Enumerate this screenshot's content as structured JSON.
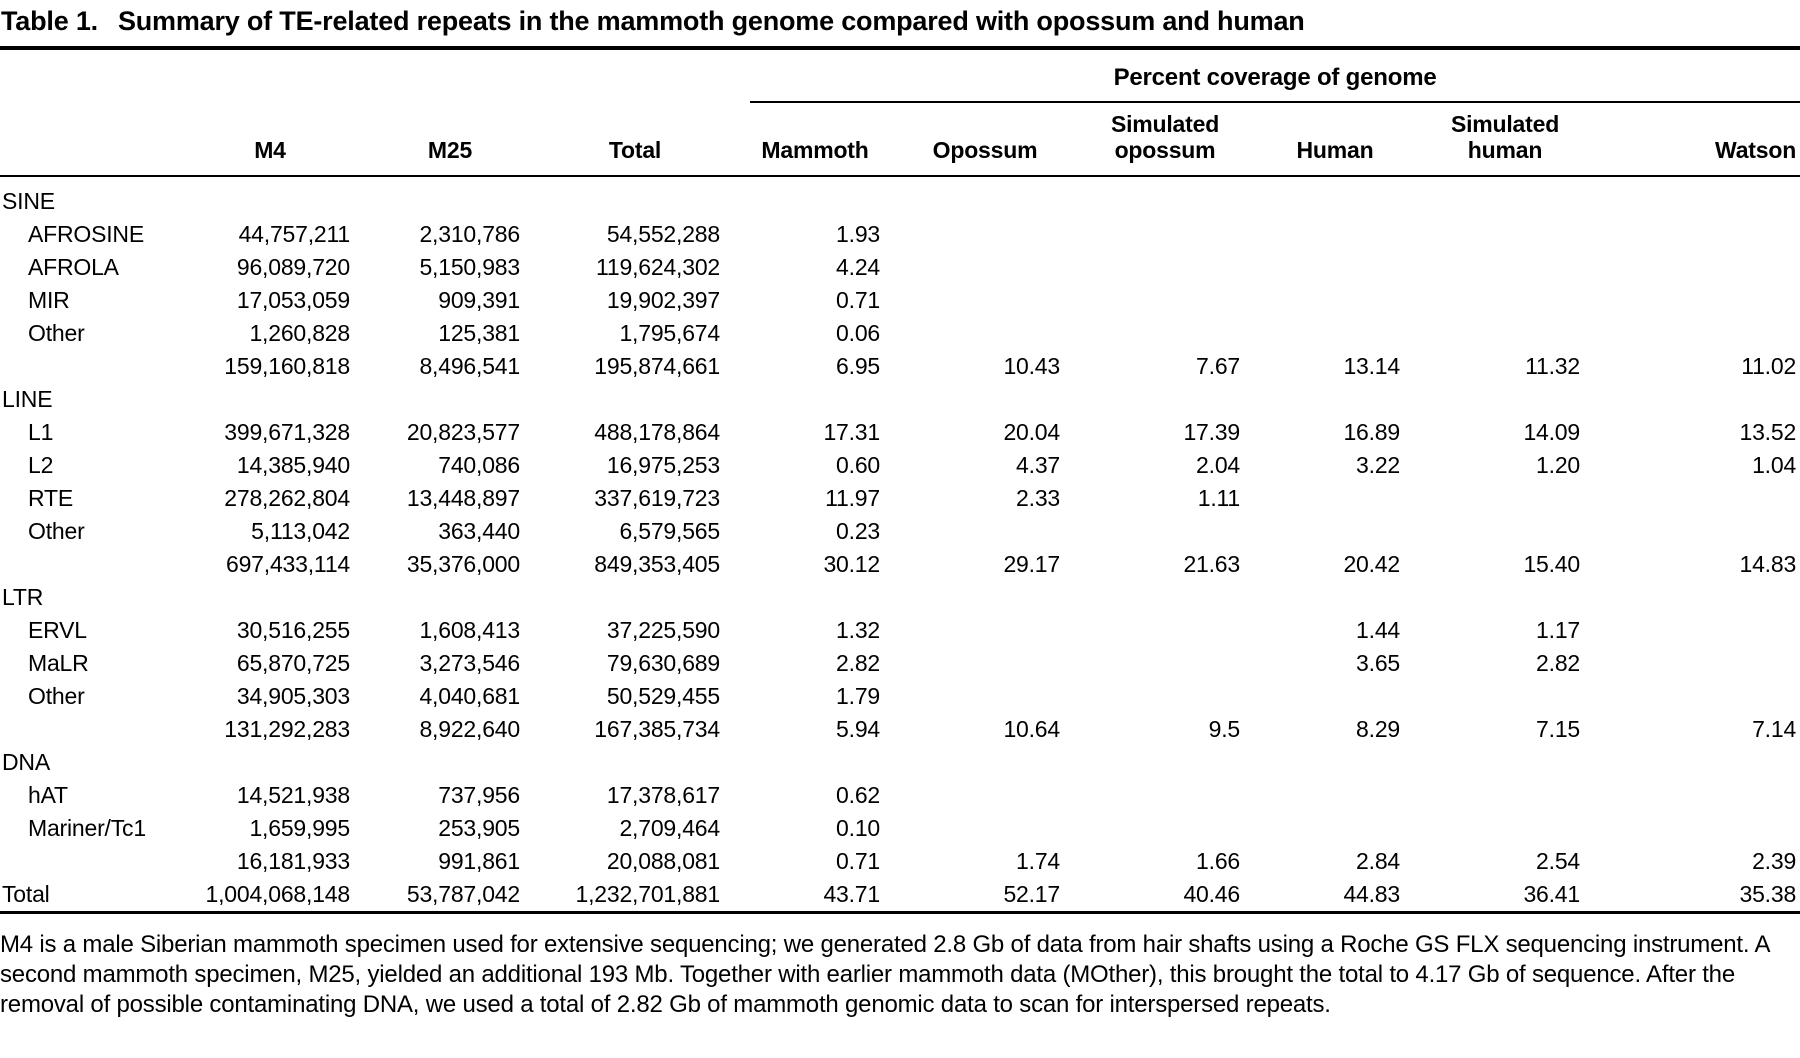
{
  "title": {
    "label": "Table 1.",
    "text": "Summary of TE-related repeats in the mammoth genome compared with opossum and human"
  },
  "table": {
    "spanner": "Percent coverage of genome",
    "columns": [
      "",
      "M4",
      "M25",
      "Total",
      "Mammoth",
      "Opossum",
      "Simulated opossum",
      "Human",
      "Simulated human",
      "Watson"
    ],
    "rows": [
      {
        "label": "SINE",
        "section": true,
        "indent": false,
        "cells": [
          "",
          "",
          "",
          "",
          "",
          "",
          "",
          "",
          ""
        ]
      },
      {
        "label": "AFROSINE",
        "section": false,
        "indent": true,
        "cells": [
          "44,757,211",
          "2,310,786",
          "54,552,288",
          "1.93",
          "",
          "",
          "",
          "",
          ""
        ]
      },
      {
        "label": "AFROLA",
        "section": false,
        "indent": true,
        "cells": [
          "96,089,720",
          "5,150,983",
          "119,624,302",
          "4.24",
          "",
          "",
          "",
          "",
          ""
        ]
      },
      {
        "label": "MIR",
        "section": false,
        "indent": true,
        "cells": [
          "17,053,059",
          "909,391",
          "19,902,397",
          "0.71",
          "",
          "",
          "",
          "",
          ""
        ]
      },
      {
        "label": "Other",
        "section": false,
        "indent": true,
        "cells": [
          "1,260,828",
          "125,381",
          "1,795,674",
          "0.06",
          "",
          "",
          "",
          "",
          ""
        ]
      },
      {
        "label": "",
        "section": false,
        "indent": false,
        "cells": [
          "159,160,818",
          "8,496,541",
          "195,874,661",
          "6.95",
          "10.43",
          "7.67",
          "13.14",
          "11.32",
          "11.02"
        ]
      },
      {
        "label": "LINE",
        "section": true,
        "indent": false,
        "cells": [
          "",
          "",
          "",
          "",
          "",
          "",
          "",
          "",
          ""
        ]
      },
      {
        "label": "L1",
        "section": false,
        "indent": true,
        "cells": [
          "399,671,328",
          "20,823,577",
          "488,178,864",
          "17.31",
          "20.04",
          "17.39",
          "16.89",
          "14.09",
          "13.52"
        ]
      },
      {
        "label": "L2",
        "section": false,
        "indent": true,
        "cells": [
          "14,385,940",
          "740,086",
          "16,975,253",
          "0.60",
          "4.37",
          "2.04",
          "3.22",
          "1.20",
          "1.04"
        ]
      },
      {
        "label": "RTE",
        "section": false,
        "indent": true,
        "cells": [
          "278,262,804",
          "13,448,897",
          "337,619,723",
          "11.97",
          "2.33",
          "1.11",
          "",
          "",
          ""
        ]
      },
      {
        "label": "Other",
        "section": false,
        "indent": true,
        "cells": [
          "5,113,042",
          "363,440",
          "6,579,565",
          "0.23",
          "",
          "",
          "",
          "",
          ""
        ]
      },
      {
        "label": "",
        "section": false,
        "indent": false,
        "cells": [
          "697,433,114",
          "35,376,000",
          "849,353,405",
          "30.12",
          "29.17",
          "21.63",
          "20.42",
          "15.40",
          "14.83"
        ]
      },
      {
        "label": "LTR",
        "section": true,
        "indent": false,
        "cells": [
          "",
          "",
          "",
          "",
          "",
          "",
          "",
          "",
          ""
        ]
      },
      {
        "label": "ERVL",
        "section": false,
        "indent": true,
        "cells": [
          "30,516,255",
          "1,608,413",
          "37,225,590",
          "1.32",
          "",
          "",
          "1.44",
          "1.17",
          ""
        ]
      },
      {
        "label": "MaLR",
        "section": false,
        "indent": true,
        "cells": [
          "65,870,725",
          "3,273,546",
          "79,630,689",
          "2.82",
          "",
          "",
          "3.65",
          "2.82",
          ""
        ]
      },
      {
        "label": "Other",
        "section": false,
        "indent": true,
        "cells": [
          "34,905,303",
          "4,040,681",
          "50,529,455",
          "1.79",
          "",
          "",
          "",
          "",
          ""
        ]
      },
      {
        "label": "",
        "section": false,
        "indent": false,
        "cells": [
          "131,292,283",
          "8,922,640",
          "167,385,734",
          "5.94",
          "10.64",
          "9.5",
          "8.29",
          "7.15",
          "7.14"
        ]
      },
      {
        "label": "DNA",
        "section": true,
        "indent": false,
        "cells": [
          "",
          "",
          "",
          "",
          "",
          "",
          "",
          "",
          ""
        ]
      },
      {
        "label": "hAT",
        "section": false,
        "indent": true,
        "cells": [
          "14,521,938",
          "737,956",
          "17,378,617",
          "0.62",
          "",
          "",
          "",
          "",
          ""
        ]
      },
      {
        "label": "Mariner/Tc1",
        "section": false,
        "indent": true,
        "cells": [
          "1,659,995",
          "253,905",
          "2,709,464",
          "0.10",
          "",
          "",
          "",
          "",
          ""
        ]
      },
      {
        "label": "",
        "section": false,
        "indent": false,
        "cells": [
          "16,181,933",
          "991,861",
          "20,088,081",
          "0.71",
          "1.74",
          "1.66",
          "2.84",
          "2.54",
          "2.39"
        ]
      },
      {
        "label": "Total",
        "section": true,
        "indent": false,
        "cells": [
          "1,004,068,148",
          "53,787,042",
          "1,232,701,881",
          "43.71",
          "52.17",
          "40.46",
          "44.83",
          "36.41",
          "35.38"
        ]
      }
    ]
  },
  "footnote": "M4 is a male Siberian mammoth specimen used for extensive sequencing; we generated 2.8 Gb of data from hair shafts using a Roche GS FLX sequencing instrument. A second mammoth specimen, M25, yielded an additional 193 Mb. Together with earlier mammoth data (MOther), this brought the total to 4.17 Gb of sequence. After the removal of possible contaminating DNA, we used a total of 2.82 Gb of mammoth genomic data to scan for interspersed repeats."
}
